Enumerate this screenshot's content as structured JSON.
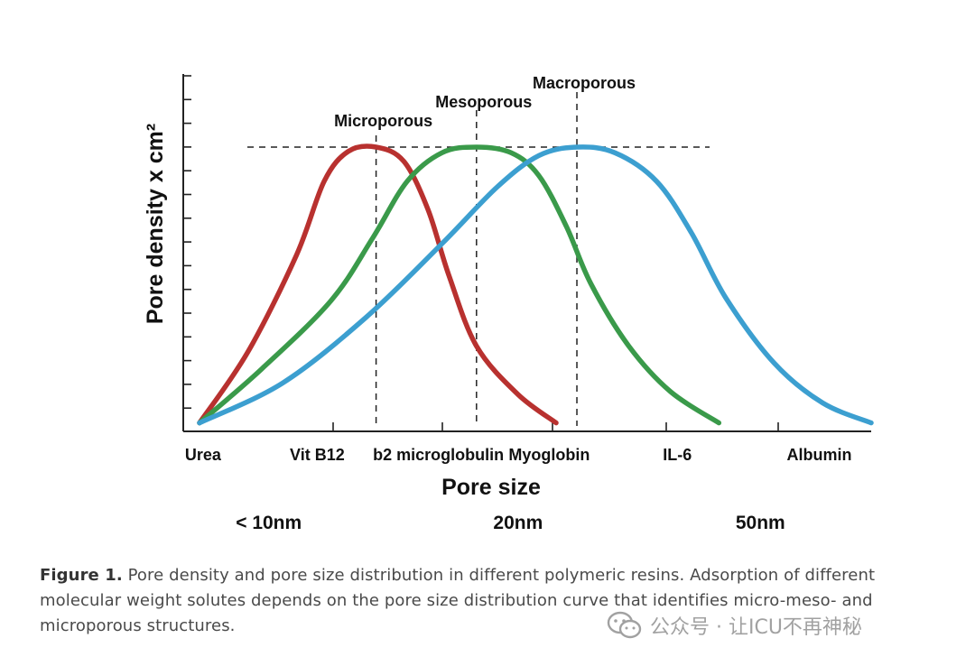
{
  "chart_data": {
    "type": "line",
    "ylabel": "Pore density x cm²",
    "xlabel": "Pore size",
    "x_range": [
      0,
      10
    ],
    "y_range": [
      0,
      1
    ],
    "categories": [
      {
        "label": "Urea",
        "x": 0.35
      },
      {
        "label": "Vit B12",
        "x": 2.0
      },
      {
        "label": "b2 microglobulin",
        "x": 3.75
      },
      {
        "label": "Myoglobin",
        "x": 5.35
      },
      {
        "label": "IL-6",
        "x": 7.2
      },
      {
        "label": "Albumin",
        "x": 9.25
      }
    ],
    "size_labels": [
      {
        "label": "< 10nm",
        "x": 1.3
      },
      {
        "label": "20nm",
        "x": 4.9
      },
      {
        "label": "50nm",
        "x": 8.4
      }
    ],
    "peak_line_y": 1.0,
    "series": [
      {
        "name": "Microporous",
        "color": "#b8312f",
        "peak_x": 2.85,
        "points": [
          [
            0.3,
            0.03
          ],
          [
            1.0,
            0.28
          ],
          [
            1.7,
            0.62
          ],
          [
            2.1,
            0.88
          ],
          [
            2.45,
            0.985
          ],
          [
            2.85,
            1.0
          ],
          [
            3.25,
            0.95
          ],
          [
            3.6,
            0.78
          ],
          [
            3.9,
            0.55
          ],
          [
            4.3,
            0.3
          ],
          [
            4.9,
            0.13
          ],
          [
            5.45,
            0.03
          ]
        ]
      },
      {
        "name": "Mesoporous",
        "color": "#3a9a4a",
        "peak_x": 4.3,
        "points": [
          [
            0.3,
            0.03
          ],
          [
            1.2,
            0.22
          ],
          [
            2.2,
            0.46
          ],
          [
            2.8,
            0.68
          ],
          [
            3.3,
            0.88
          ],
          [
            3.8,
            0.98
          ],
          [
            4.3,
            1.0
          ],
          [
            4.8,
            0.98
          ],
          [
            5.2,
            0.9
          ],
          [
            5.6,
            0.72
          ],
          [
            5.95,
            0.52
          ],
          [
            6.5,
            0.3
          ],
          [
            7.1,
            0.14
          ],
          [
            7.8,
            0.03
          ]
        ]
      },
      {
        "name": "Macroporous",
        "color": "#3c9fd0",
        "peak_x": 5.75,
        "points": [
          [
            0.3,
            0.03
          ],
          [
            1.5,
            0.17
          ],
          [
            2.7,
            0.4
          ],
          [
            3.8,
            0.66
          ],
          [
            4.6,
            0.86
          ],
          [
            5.2,
            0.97
          ],
          [
            5.75,
            1.0
          ],
          [
            6.3,
            0.98
          ],
          [
            6.9,
            0.88
          ],
          [
            7.4,
            0.7
          ],
          [
            7.9,
            0.47
          ],
          [
            8.6,
            0.24
          ],
          [
            9.3,
            0.1
          ],
          [
            10.0,
            0.03
          ]
        ]
      }
    ]
  },
  "caption": {
    "label": "Figure 1.",
    "text": " Pore density and pore size distribution in different polymeric resins. Adsorption of different molecular weight solutes depends on the pore size distribution curve that identifies micro-meso- and microporous structures."
  },
  "watermark": {
    "text": "公众号 · 让ICU不再神秘"
  }
}
